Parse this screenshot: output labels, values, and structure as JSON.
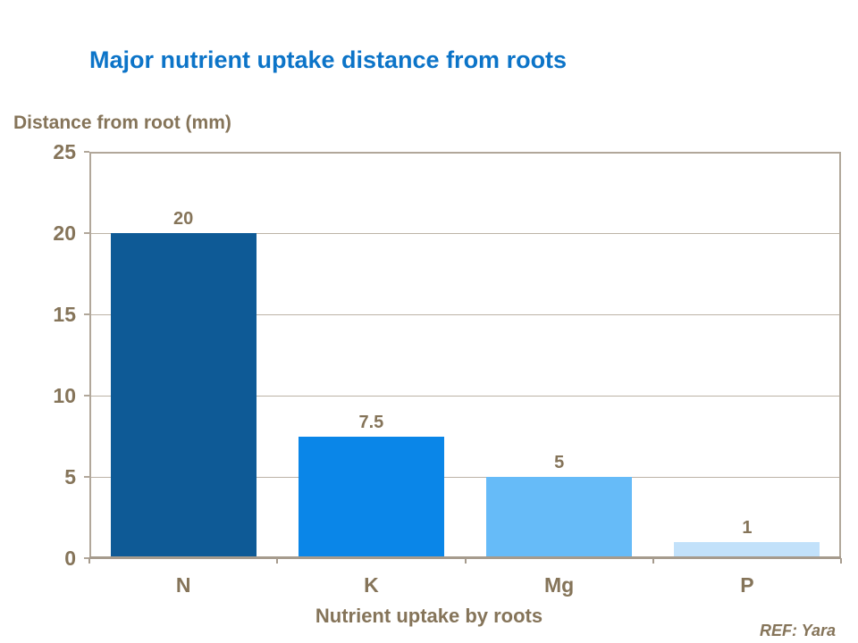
{
  "slide": {
    "title": "Major nutrient uptake distance from roots",
    "ref": "REF: Yara"
  },
  "chart_data": {
    "type": "bar",
    "title": "Major nutrient uptake distance from roots",
    "categories": [
      "N",
      "K",
      "Mg",
      "P"
    ],
    "values": [
      20,
      7.5,
      5,
      1
    ],
    "value_labels": [
      "20",
      "7.5",
      "5",
      "1"
    ],
    "xlabel": "Nutrient uptake by roots",
    "ylabel": "Distance from root (mm)",
    "ylim": [
      0,
      25
    ],
    "yticks": [
      25,
      20,
      15,
      10,
      5,
      0
    ],
    "grid": "horizontal",
    "legend": "none",
    "bar_colors": [
      "#0e5a96",
      "#0a86e8",
      "#66bbf8",
      "#c2e1fa"
    ]
  },
  "colors": {
    "title_blue": "#0c74c8",
    "text_brown": "#857459",
    "axis_line": "#b1a79a",
    "gridline": "#bcb3a6",
    "background": "#ffffff"
  }
}
